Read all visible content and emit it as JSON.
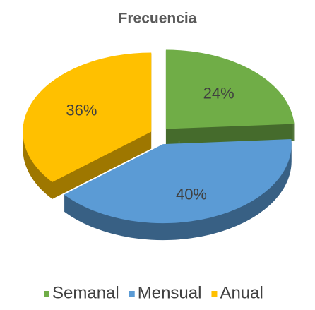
{
  "chart_data": {
    "type": "pie",
    "title": "Frecuencia",
    "categories": [
      "Semanal",
      "Mensual",
      "Anual"
    ],
    "values": [
      24,
      40,
      36
    ],
    "value_labels": [
      "24%",
      "40%",
      "36%"
    ],
    "colors": [
      "#70ad47",
      "#5b9bd5",
      "#ffc000"
    ],
    "legend": "bottom"
  }
}
